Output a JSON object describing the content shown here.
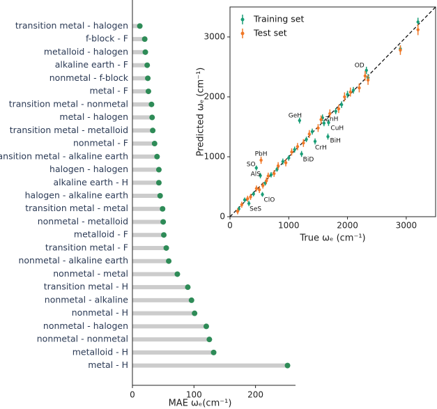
{
  "chart_data": [
    {
      "type": "lollipop",
      "categories": [
        "transition metal - halogen",
        "f-block - F",
        "metalloid - halogen",
        "alkaline earth - F",
        "nonmetal - f-block",
        "metal - F",
        "transition metal - nonmetal",
        "metal - halogen",
        "transition metal - metalloid",
        "nonmetal - F",
        "transition metal - alkaline earth",
        "halogen - halogen",
        "alkaline earth - H",
        "halogen - alkaline earth",
        "transition metal - metal",
        "nonmetal - metalloid",
        "metalloid - F",
        "transition metal - F",
        "nonmetal - alkaline earth",
        "nonmetal - metal",
        "transition metal - H",
        "nonmetal - alkaline",
        "nonmetal - H",
        "nonmetal - halogen",
        "nonmetal - nonmetal",
        "metalloid - H",
        "metal - H"
      ],
      "values": [
        12,
        20,
        21,
        24,
        25,
        26,
        31,
        32,
        33,
        36,
        40,
        43,
        43,
        45,
        49,
        50,
        51,
        55,
        59,
        73,
        90,
        96,
        101,
        120,
        125,
        132,
        252
      ],
      "color": "#2e8b57",
      "stem_color": "#cccccc",
      "xlabel": "MAE ωₑ(cm⁻¹)",
      "xlim": [
        0,
        265
      ],
      "xticks": [
        0,
        100,
        200
      ]
    },
    {
      "type": "scatter",
      "xlabel": "True ωₑ (cm⁻¹)",
      "ylabel": "Predicted ωₑ (cm⁻¹)",
      "xlim": [
        0,
        3500
      ],
      "ylim": [
        0,
        3500
      ],
      "xticks": [
        0,
        1000,
        2000,
        3000
      ],
      "yticks": [
        0,
        1000,
        2000,
        3000
      ],
      "legend": "upper left",
      "series": [
        {
          "name": "Training set",
          "color": "#1a9e77",
          "x": [
            150,
            250,
            322,
            400,
            448,
            517,
            552,
            600,
            700,
            800,
            900,
            1000,
            1100,
            1184,
            1218,
            1300,
            1400,
            1448,
            1575,
            1600,
            1667,
            1678,
            1800,
            1900,
            2000,
            2100,
            2322,
            2350,
            2900,
            3200
          ],
          "values": [
            130,
            280,
            221,
            380,
            814,
            686,
            372,
            560,
            700,
            790,
            920,
            980,
            1120,
            1605,
            1047,
            1290,
            1420,
            1256,
            1651,
            1560,
            1337,
            1570,
            1760,
            1870,
            2040,
            2110,
            2442,
            2320,
            2800,
            3250
          ],
          "errors": [
            40,
            40,
            45,
            40,
            40,
            45,
            40,
            40,
            45,
            40,
            50,
            45,
            50,
            50,
            50,
            45,
            50,
            50,
            55,
            50,
            50,
            55,
            50,
            55,
            60,
            55,
            60,
            60,
            60,
            70
          ]
        },
        {
          "name": "Test set",
          "color": "#f07828",
          "x": [
            130,
            200,
            300,
            350,
            450,
            500,
            529,
            560,
            620,
            650,
            750,
            820,
            950,
            1050,
            1150,
            1250,
            1350,
            1500,
            1550,
            1700,
            1850,
            1950,
            2050,
            2200,
            2300,
            2350,
            2900,
            3200
          ],
          "values": [
            90,
            200,
            300,
            330,
            470,
            450,
            942,
            520,
            600,
            680,
            720,
            850,
            900,
            1080,
            1170,
            1230,
            1380,
            1480,
            1620,
            1720,
            1800,
            2000,
            2080,
            2150,
            2350,
            2280,
            2780,
            3120
          ],
          "errors": [
            50,
            50,
            50,
            50,
            50,
            55,
            60,
            50,
            55,
            55,
            55,
            60,
            60,
            60,
            60,
            65,
            65,
            65,
            70,
            70,
            70,
            75,
            75,
            75,
            80,
            80,
            80,
            90
          ]
        }
      ],
      "annotations": [
        {
          "text": "OD",
          "x": 2322,
          "y": 2442
        },
        {
          "text": "GeH",
          "x": 1184,
          "y": 1605
        },
        {
          "text": "ZnH",
          "x": 1575,
          "y": 1651
        },
        {
          "text": "CuH",
          "x": 1678,
          "y": 1570
        },
        {
          "text": "BiH",
          "x": 1667,
          "y": 1337
        },
        {
          "text": "CrH",
          "x": 1448,
          "y": 1256
        },
        {
          "text": "PbH",
          "x": 529,
          "y": 942
        },
        {
          "text": "SO",
          "x": 448,
          "y": 814
        },
        {
          "text": "AlS",
          "x": 517,
          "y": 686
        },
        {
          "text": "BiD",
          "x": 1218,
          "y": 1047
        },
        {
          "text": "ClO",
          "x": 552,
          "y": 372
        },
        {
          "text": "SeS",
          "x": 322,
          "y": 221
        }
      ]
    }
  ]
}
